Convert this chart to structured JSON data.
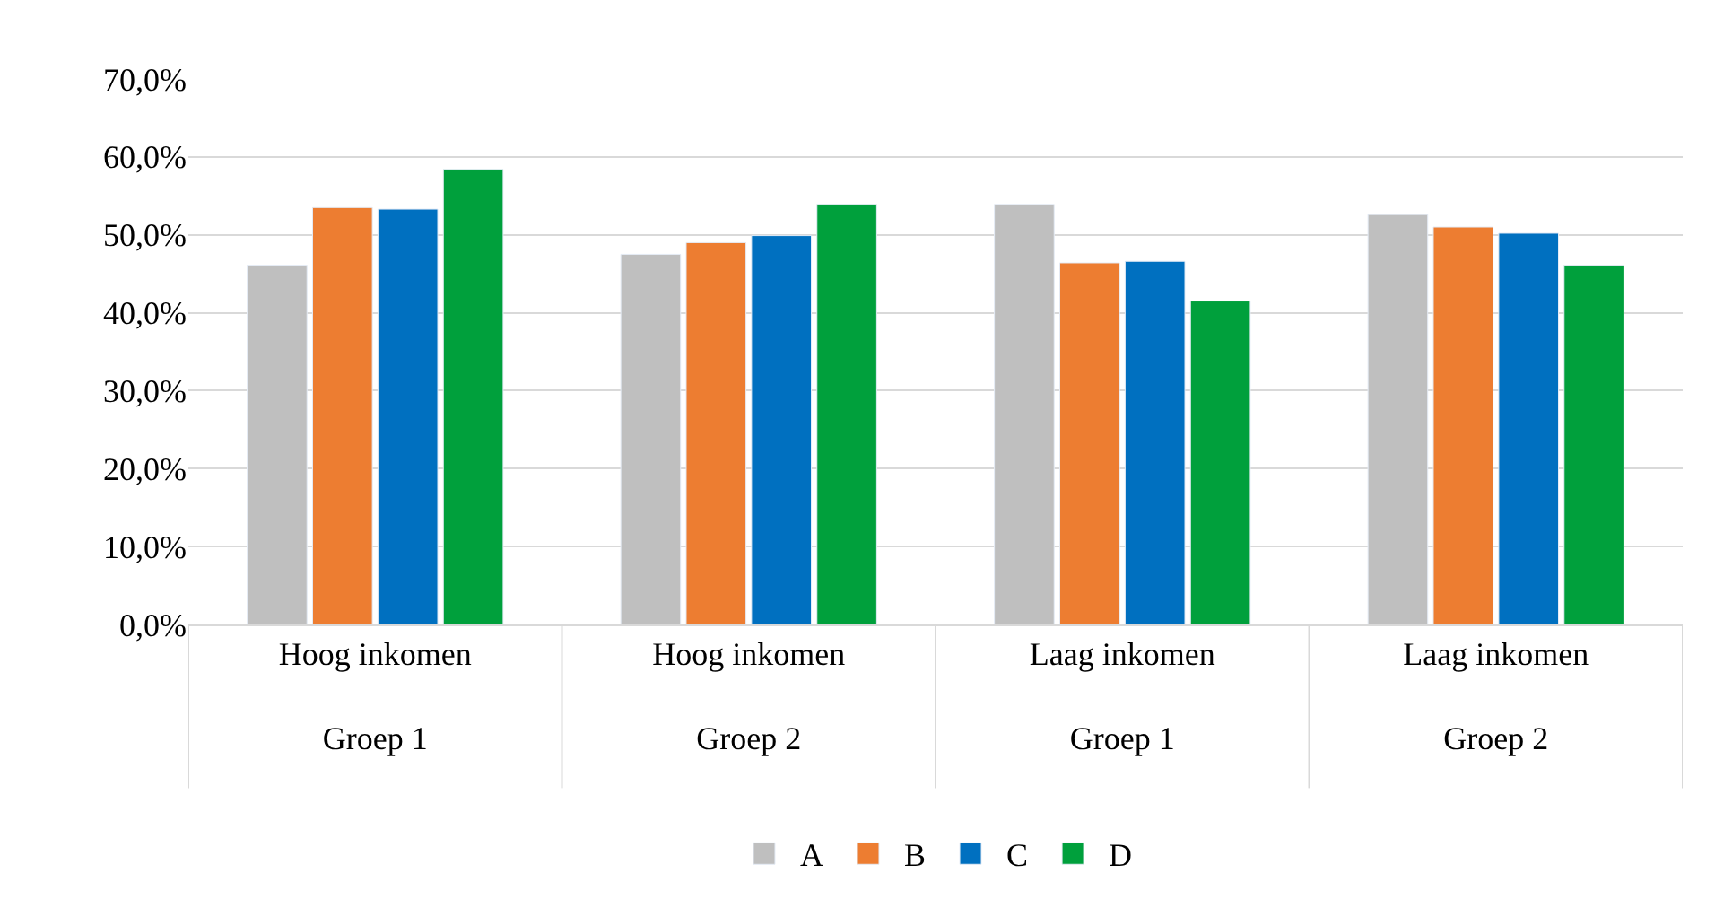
{
  "chart_data": {
    "type": "bar",
    "categories": [
      "Hoog inkomen\nGroep 1",
      "Hoog inkomen\nGroep 2",
      "Laag inkomen\nGroep 1",
      "Laag inkomen\nGroep 2"
    ],
    "series": [
      {
        "name": "A",
        "color": "#bfbfbf",
        "values": [
          46.1,
          47.5,
          53.9,
          52.6
        ]
      },
      {
        "name": "B",
        "color": "#ed7d31",
        "values": [
          53.5,
          49.0,
          46.4,
          51.0
        ]
      },
      {
        "name": "C",
        "color": "#0070c0",
        "values": [
          53.3,
          49.9,
          46.6,
          50.2
        ]
      },
      {
        "name": "D",
        "color": "#00a03c",
        "values": [
          58.4,
          53.9,
          41.5,
          46.1
        ]
      }
    ],
    "ylim": [
      0,
      70
    ],
    "yticks": [
      {
        "value": 0,
        "label": "0,0%"
      },
      {
        "value": 10,
        "label": "10,0%"
      },
      {
        "value": 20,
        "label": "20,0%"
      },
      {
        "value": 30,
        "label": "30,0%"
      },
      {
        "value": 40,
        "label": "40,0%"
      },
      {
        "value": 50,
        "label": "50,0%"
      },
      {
        "value": 60,
        "label": "60,0%"
      },
      {
        "value": 70,
        "label": "70,0%"
      }
    ],
    "grid": "y",
    "legend": "bottom"
  }
}
